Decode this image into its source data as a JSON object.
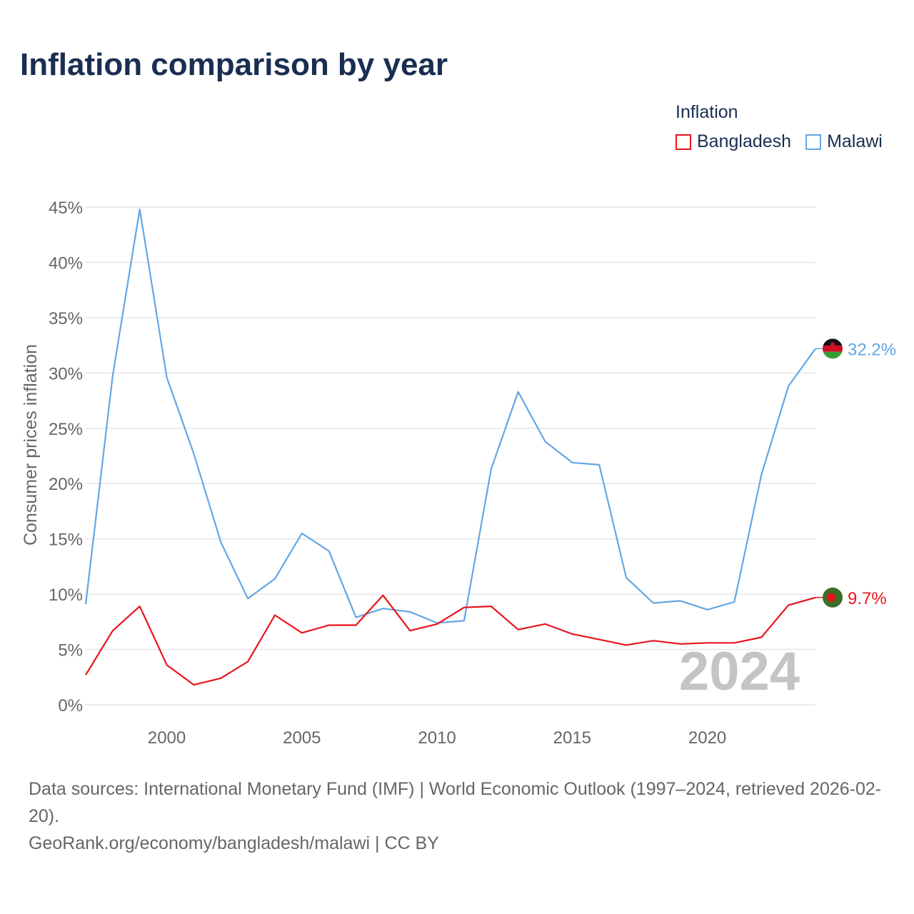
{
  "title": "Inflation comparison by year",
  "legend": {
    "title": "Inflation",
    "items": [
      {
        "name": "Bangladesh",
        "color": "#e8141c"
      },
      {
        "name": "Malawi",
        "color": "#64a6e3"
      }
    ]
  },
  "year_label": "2024",
  "footer": {
    "sources": "Data sources: International Monetary Fund (IMF) | World Economic Outlook (1997–2024, retrieved 2026-02-20).",
    "url": "GeoRank.org/economy/bangladesh/malawi | CC BY"
  },
  "chart_data": {
    "type": "line",
    "title": "Inflation comparison by year",
    "xlabel": "",
    "ylabel": "Consumer prices inflation",
    "xlim": [
      1997,
      2024
    ],
    "ylim": [
      0,
      45
    ],
    "x_ticks": [
      2000,
      2005,
      2010,
      2015,
      2020
    ],
    "y_ticks": [
      0,
      5,
      10,
      15,
      20,
      25,
      30,
      35,
      40,
      45
    ],
    "y_tick_labels": [
      "0%",
      "5%",
      "10%",
      "15%",
      "20%",
      "25%",
      "30%",
      "35%",
      "40%",
      "45%"
    ],
    "grid": true,
    "x": [
      1997,
      1998,
      1999,
      2000,
      2001,
      2002,
      2003,
      2004,
      2005,
      2006,
      2007,
      2008,
      2009,
      2010,
      2011,
      2012,
      2013,
      2014,
      2015,
      2016,
      2017,
      2018,
      2019,
      2020,
      2021,
      2022,
      2023,
      2024
    ],
    "series": [
      {
        "name": "Malawi",
        "color": "#64a6e3",
        "end_label": "32.2%",
        "values": [
          9.1,
          29.8,
          44.8,
          29.6,
          22.7,
          14.7,
          9.6,
          11.4,
          15.5,
          13.9,
          7.9,
          8.7,
          8.4,
          7.4,
          7.6,
          21.3,
          28.3,
          23.8,
          21.9,
          21.7,
          11.5,
          9.2,
          9.4,
          8.6,
          9.3,
          20.8,
          28.8,
          32.2
        ]
      },
      {
        "name": "Bangladesh",
        "color": "#e8141c",
        "end_label": "9.7%",
        "values": [
          2.7,
          6.7,
          8.9,
          3.6,
          1.8,
          2.4,
          3.9,
          8.1,
          6.5,
          7.2,
          7.2,
          9.9,
          6.7,
          7.3,
          8.8,
          8.9,
          6.8,
          7.3,
          6.4,
          5.9,
          5.4,
          5.8,
          5.5,
          5.6,
          5.6,
          6.1,
          9.0,
          9.7
        ]
      }
    ]
  }
}
